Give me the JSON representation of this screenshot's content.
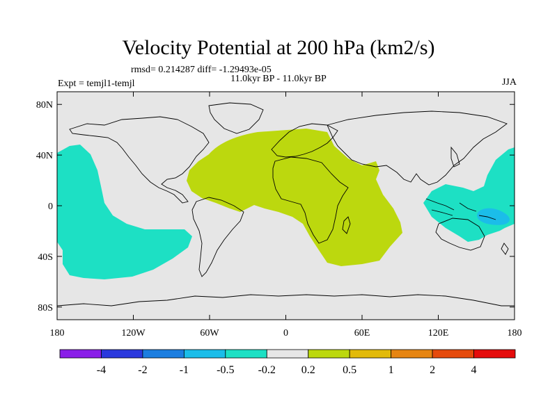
{
  "title": "Velocity Potential at 200 hPa (km2/s)",
  "stats": "rmsd= 0.214287  diff= -1.29493e-05",
  "period": "11.0kyr BP - 11.0kyr BP",
  "experiment": "Expt = temjl1-temjl",
  "season": "JJA",
  "chart_data": {
    "type": "heatmap",
    "projection": "cylindrical-equidistant",
    "xlim": [
      -180,
      180
    ],
    "ylim": [
      -90,
      90
    ],
    "lon_ticks": [
      -180,
      -120,
      -60,
      0,
      60,
      120,
      180
    ],
    "lon_tick_labels": [
      "180",
      "120W",
      "60W",
      "0",
      "60E",
      "120E",
      "180"
    ],
    "lat_ticks": [
      80,
      40,
      0,
      -40,
      -80
    ],
    "lat_tick_labels": [
      "80N",
      "40N",
      "0",
      "40S",
      "80S"
    ],
    "colorbar": {
      "boundaries": [
        -4,
        -2,
        -1,
        -0.5,
        -0.2,
        0.2,
        0.5,
        1,
        2,
        4
      ],
      "labels": [
        "-4",
        "-2",
        "-1",
        "-0.5",
        "-0.2",
        "0.2",
        "0.5",
        "1",
        "2",
        "4"
      ],
      "colors": [
        "#8a1ee8",
        "#2b39dd",
        "#1c7ee0",
        "#1bbde9",
        "#1de0c4",
        "#e6e6e6",
        "#bcd80e",
        "#e2ba0a",
        "#e68512",
        "#e54a0c",
        "#e50c0c"
      ]
    },
    "regions": [
      {
        "name": "Atlantic-Africa-Indian positive lobe",
        "value_range": [
          0.2,
          0.5
        ],
        "color": "#bcd80e"
      },
      {
        "name": "Eastern Pacific negative lobe",
        "value_range": [
          -0.5,
          -0.2
        ],
        "color": "#1de0c4"
      },
      {
        "name": "Western Pacific / Maritime Continent negative lobe",
        "value_range": [
          -0.5,
          -0.2
        ],
        "color": "#1de0c4"
      },
      {
        "name": "Western Pacific core",
        "value_range": [
          -1,
          -0.5
        ],
        "color": "#1bbde9"
      }
    ]
  }
}
